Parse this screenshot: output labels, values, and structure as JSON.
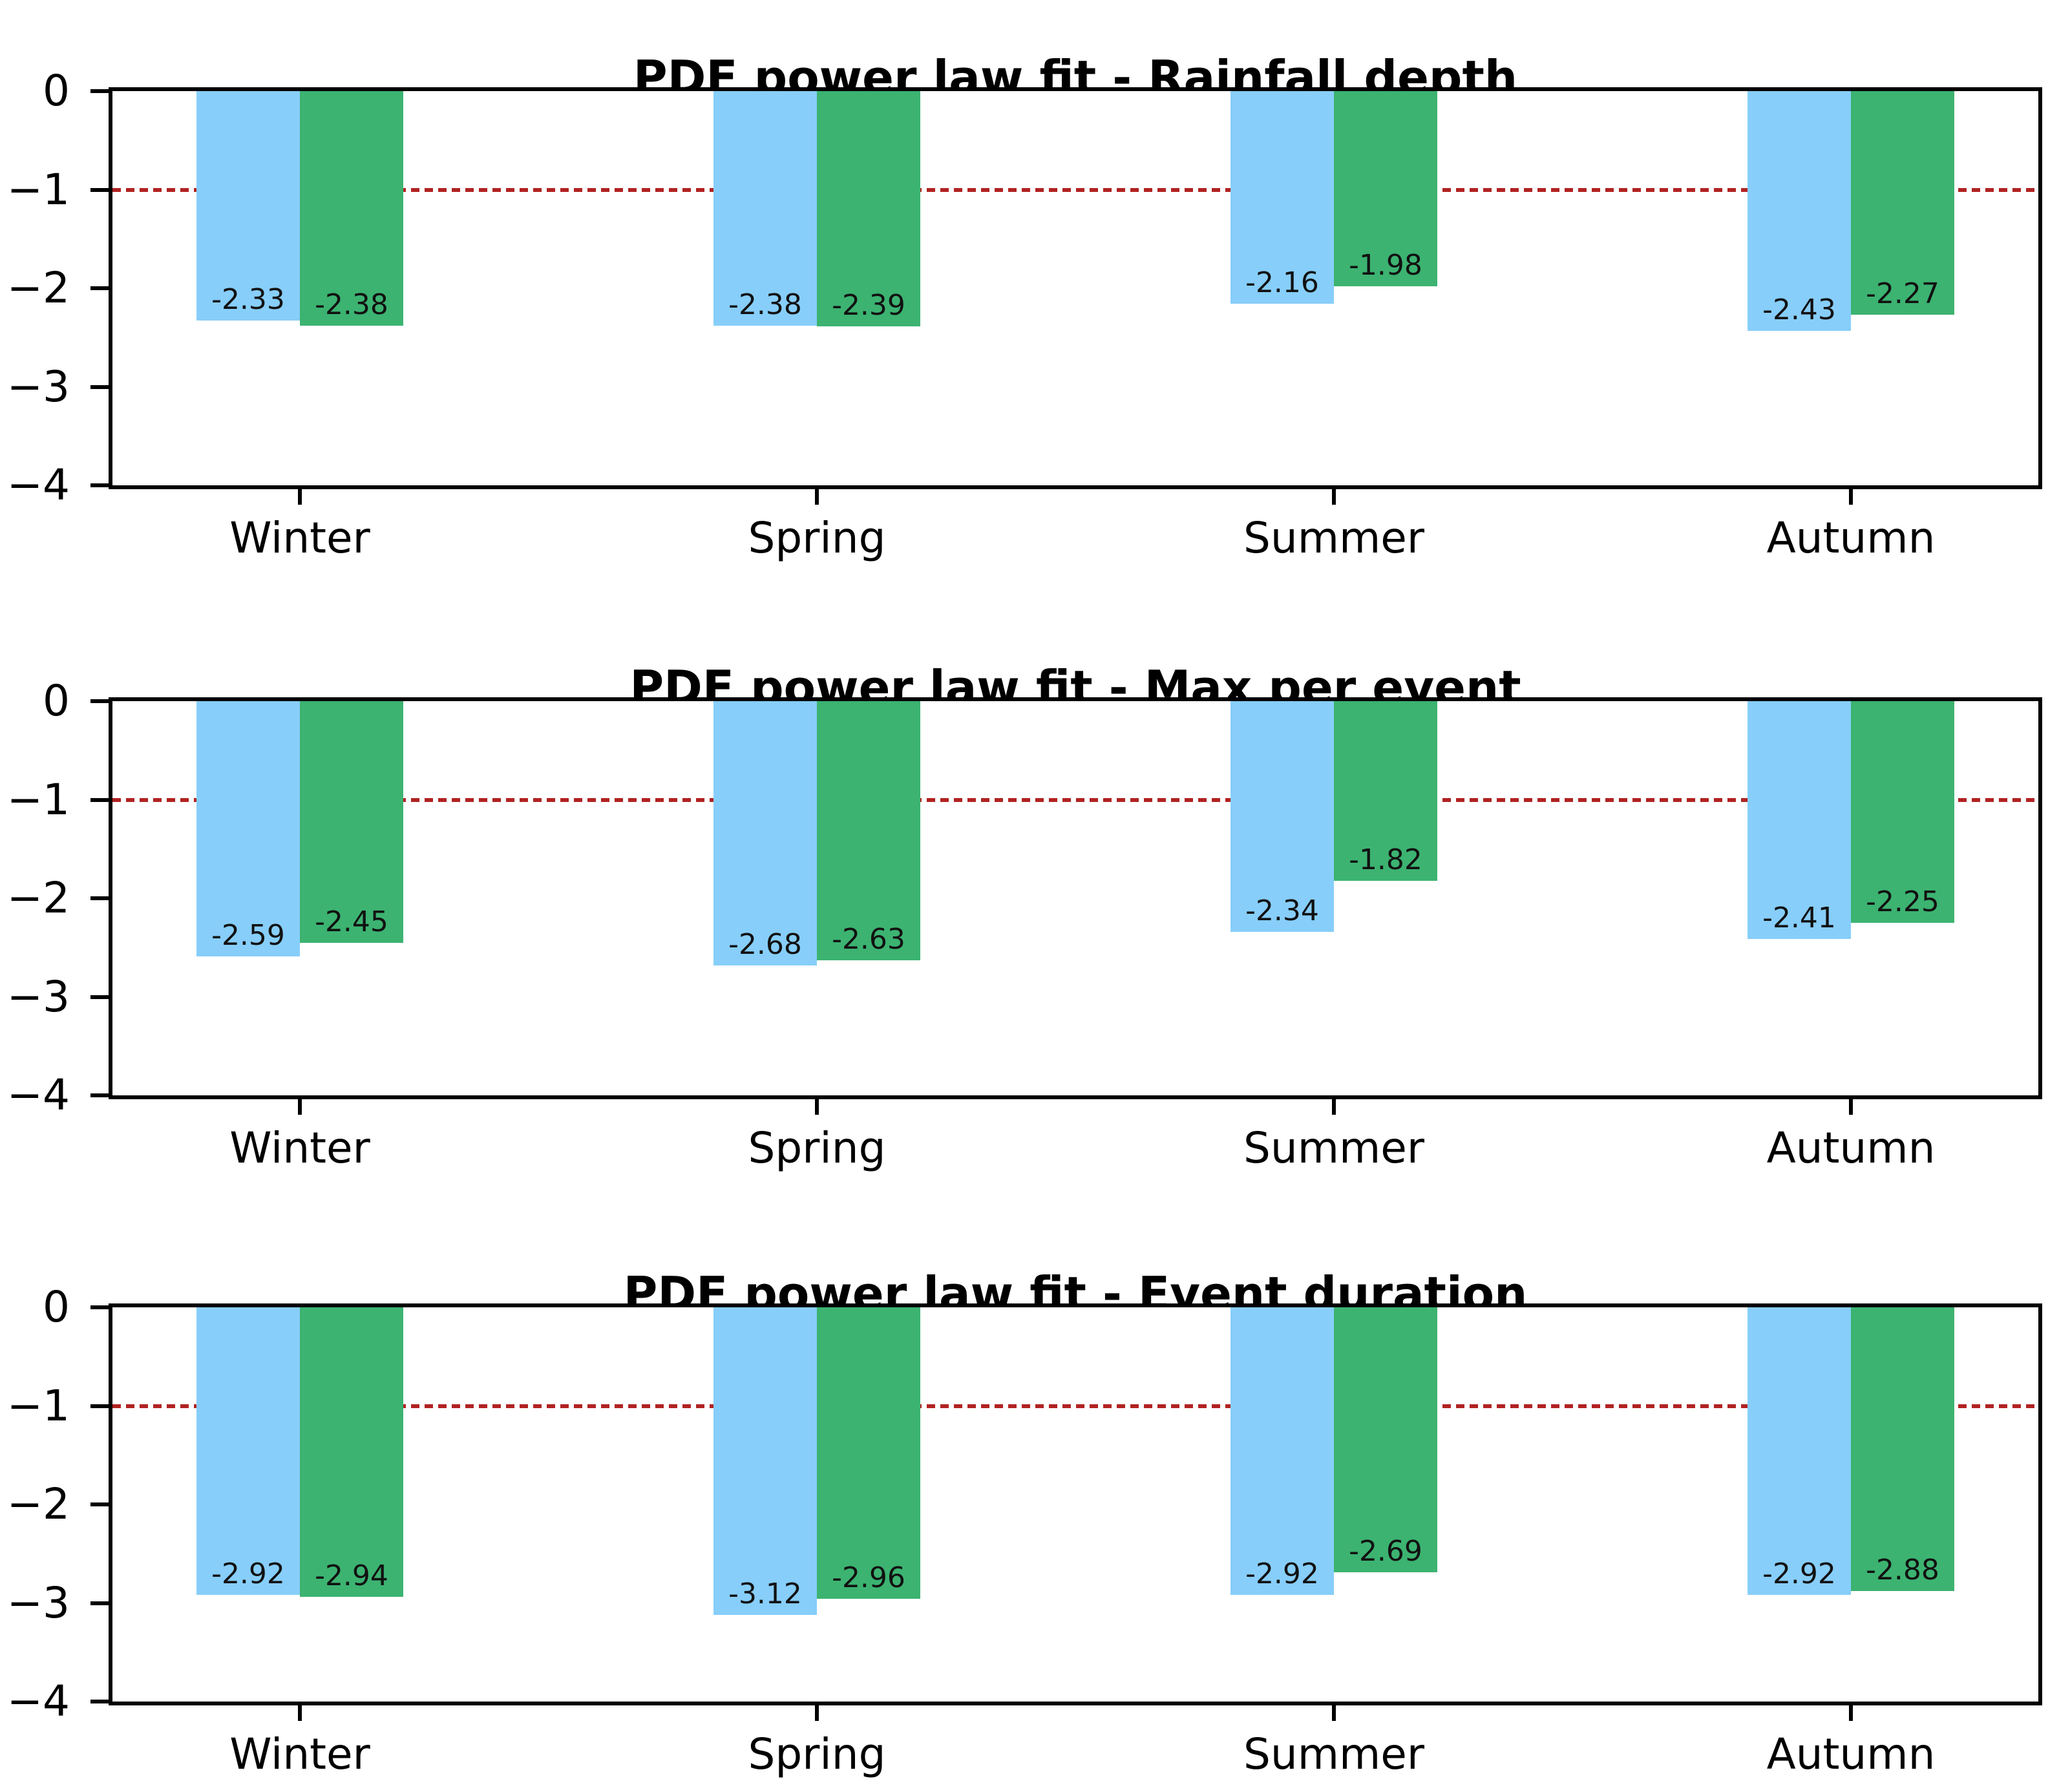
{
  "figure": {
    "background": "#ffffff",
    "text_color": "#000000",
    "axis_color": "#000000"
  },
  "chart_data": [
    {
      "type": "bar",
      "title": "PDF power law fit - Rainfall depth",
      "categories": [
        "Winter",
        "Spring",
        "Summer",
        "Autumn"
      ],
      "series": [
        {
          "name": "blue",
          "color": "#87CEFA",
          "values": [
            -2.33,
            -2.38,
            -2.16,
            -2.43
          ],
          "labels": [
            "-2.33",
            "-2.38",
            "-2.16",
            "-2.43"
          ]
        },
        {
          "name": "green",
          "color": "#3CB371",
          "values": [
            -2.38,
            -2.39,
            -1.98,
            -2.27
          ],
          "labels": [
            "-2.38",
            "-2.39",
            "-1.98",
            "-2.27"
          ]
        }
      ],
      "ylim": [
        -4,
        0
      ],
      "yticks": {
        "values": [
          0,
          -1,
          -2,
          -3,
          -4
        ],
        "labels": [
          "0",
          "−1",
          "−2",
          "−3",
          "−4"
        ]
      },
      "ref_line": {
        "y": -1,
        "color": "#B22222",
        "style": "dashed"
      },
      "grid": "off",
      "legend": "none"
    },
    {
      "type": "bar",
      "title": "PDF power law fit - Max per event",
      "categories": [
        "Winter",
        "Spring",
        "Summer",
        "Autumn"
      ],
      "series": [
        {
          "name": "blue",
          "color": "#87CEFA",
          "values": [
            -2.59,
            -2.68,
            -2.34,
            -2.41
          ],
          "labels": [
            "-2.59",
            "-2.68",
            "-2.34",
            "-2.41"
          ]
        },
        {
          "name": "green",
          "color": "#3CB371",
          "values": [
            -2.45,
            -2.63,
            -1.82,
            -2.25
          ],
          "labels": [
            "-2.45",
            "-2.63",
            "-1.82",
            "-2.25"
          ]
        }
      ],
      "ylim": [
        -4,
        0
      ],
      "yticks": {
        "values": [
          0,
          -1,
          -2,
          -3,
          -4
        ],
        "labels": [
          "0",
          "−1",
          "−2",
          "−3",
          "−4"
        ]
      },
      "ref_line": {
        "y": -1,
        "color": "#B22222",
        "style": "dashed"
      },
      "grid": "off",
      "legend": "none"
    },
    {
      "type": "bar",
      "title": "PDF power law fit - Event duration",
      "categories": [
        "Winter",
        "Spring",
        "Summer",
        "Autumn"
      ],
      "series": [
        {
          "name": "blue",
          "color": "#87CEFA",
          "values": [
            -2.92,
            -3.12,
            -2.92,
            -2.92
          ],
          "labels": [
            "-2.92",
            "-3.12",
            "-2.92",
            "-2.92"
          ]
        },
        {
          "name": "green",
          "color": "#3CB371",
          "values": [
            -2.94,
            -2.96,
            -2.69,
            -2.88
          ],
          "labels": [
            "-2.94",
            "-2.96",
            "-2.69",
            "-2.88"
          ]
        }
      ],
      "ylim": [
        -4,
        0
      ],
      "yticks": {
        "values": [
          0,
          -1,
          -2,
          -3,
          -4
        ],
        "labels": [
          "0",
          "−1",
          "−2",
          "−3",
          "−4"
        ]
      },
      "ref_line": {
        "y": -1,
        "color": "#B22222",
        "style": "dashed"
      },
      "grid": "off",
      "legend": "none"
    }
  ]
}
